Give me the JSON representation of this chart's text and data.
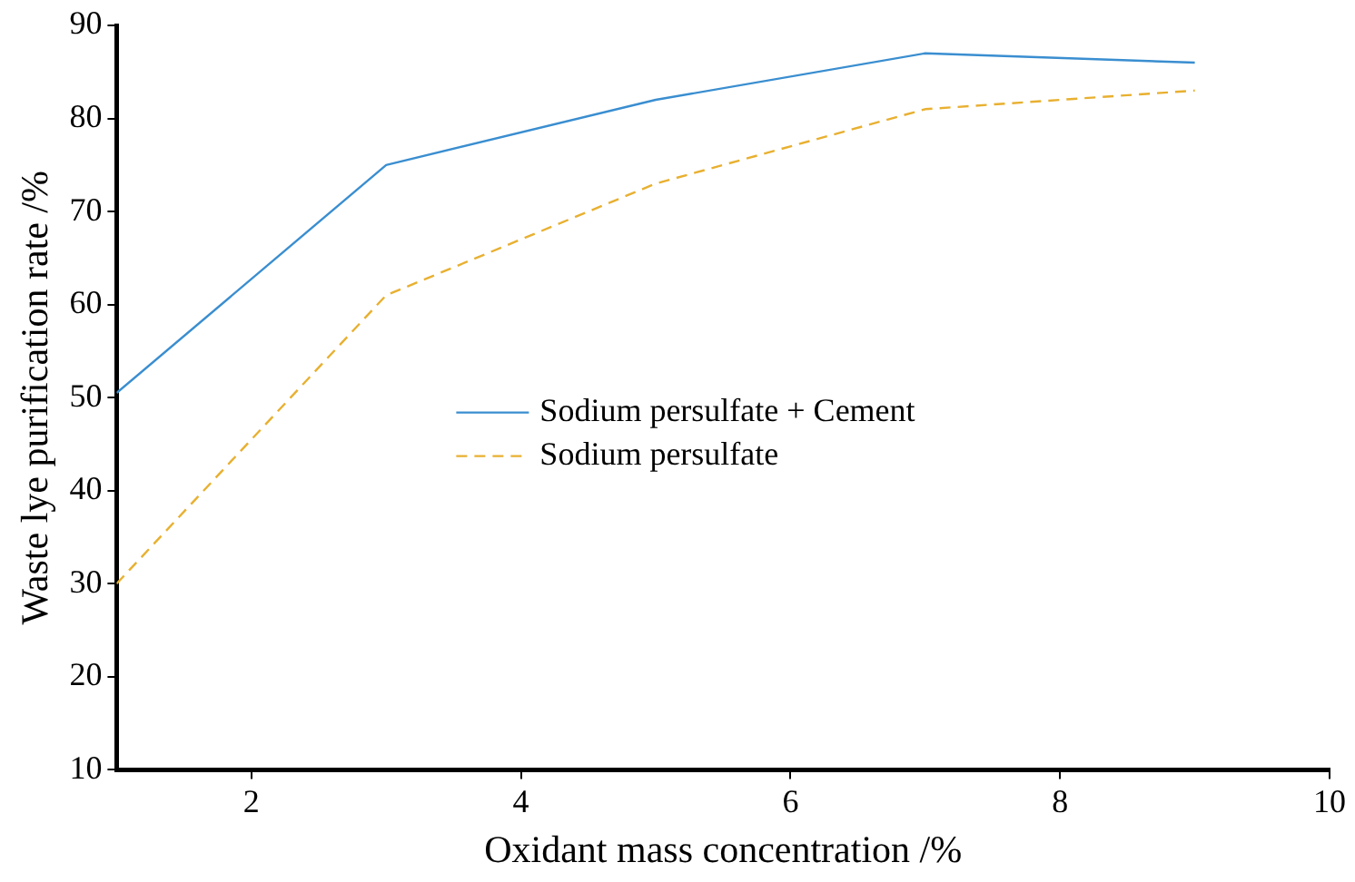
{
  "chart_data": {
    "type": "line",
    "xlabel": "Oxidant mass concentration /%",
    "ylabel": "Waste lye purification rate /%",
    "x": [
      1,
      3,
      5,
      7,
      9
    ],
    "series": [
      {
        "name": "Sodium persulfate + Cement",
        "color": "#3a8ed0",
        "values": [
          50.5,
          75,
          82,
          87,
          86
        ],
        "line_style": "solid"
      },
      {
        "name": "Sodium persulfate",
        "color": "#e8b030",
        "values": [
          30,
          61,
          73,
          81,
          83
        ],
        "line_style": "dashed"
      }
    ],
    "xlim": [
      1,
      10
    ],
    "xticks": [
      2,
      4,
      6,
      8,
      10
    ],
    "ylim": [
      10,
      90
    ],
    "yticks": [
      10,
      20,
      30,
      40,
      50,
      60,
      70,
      80,
      90
    ],
    "grid": false,
    "legend": "center",
    "marker": "none"
  }
}
